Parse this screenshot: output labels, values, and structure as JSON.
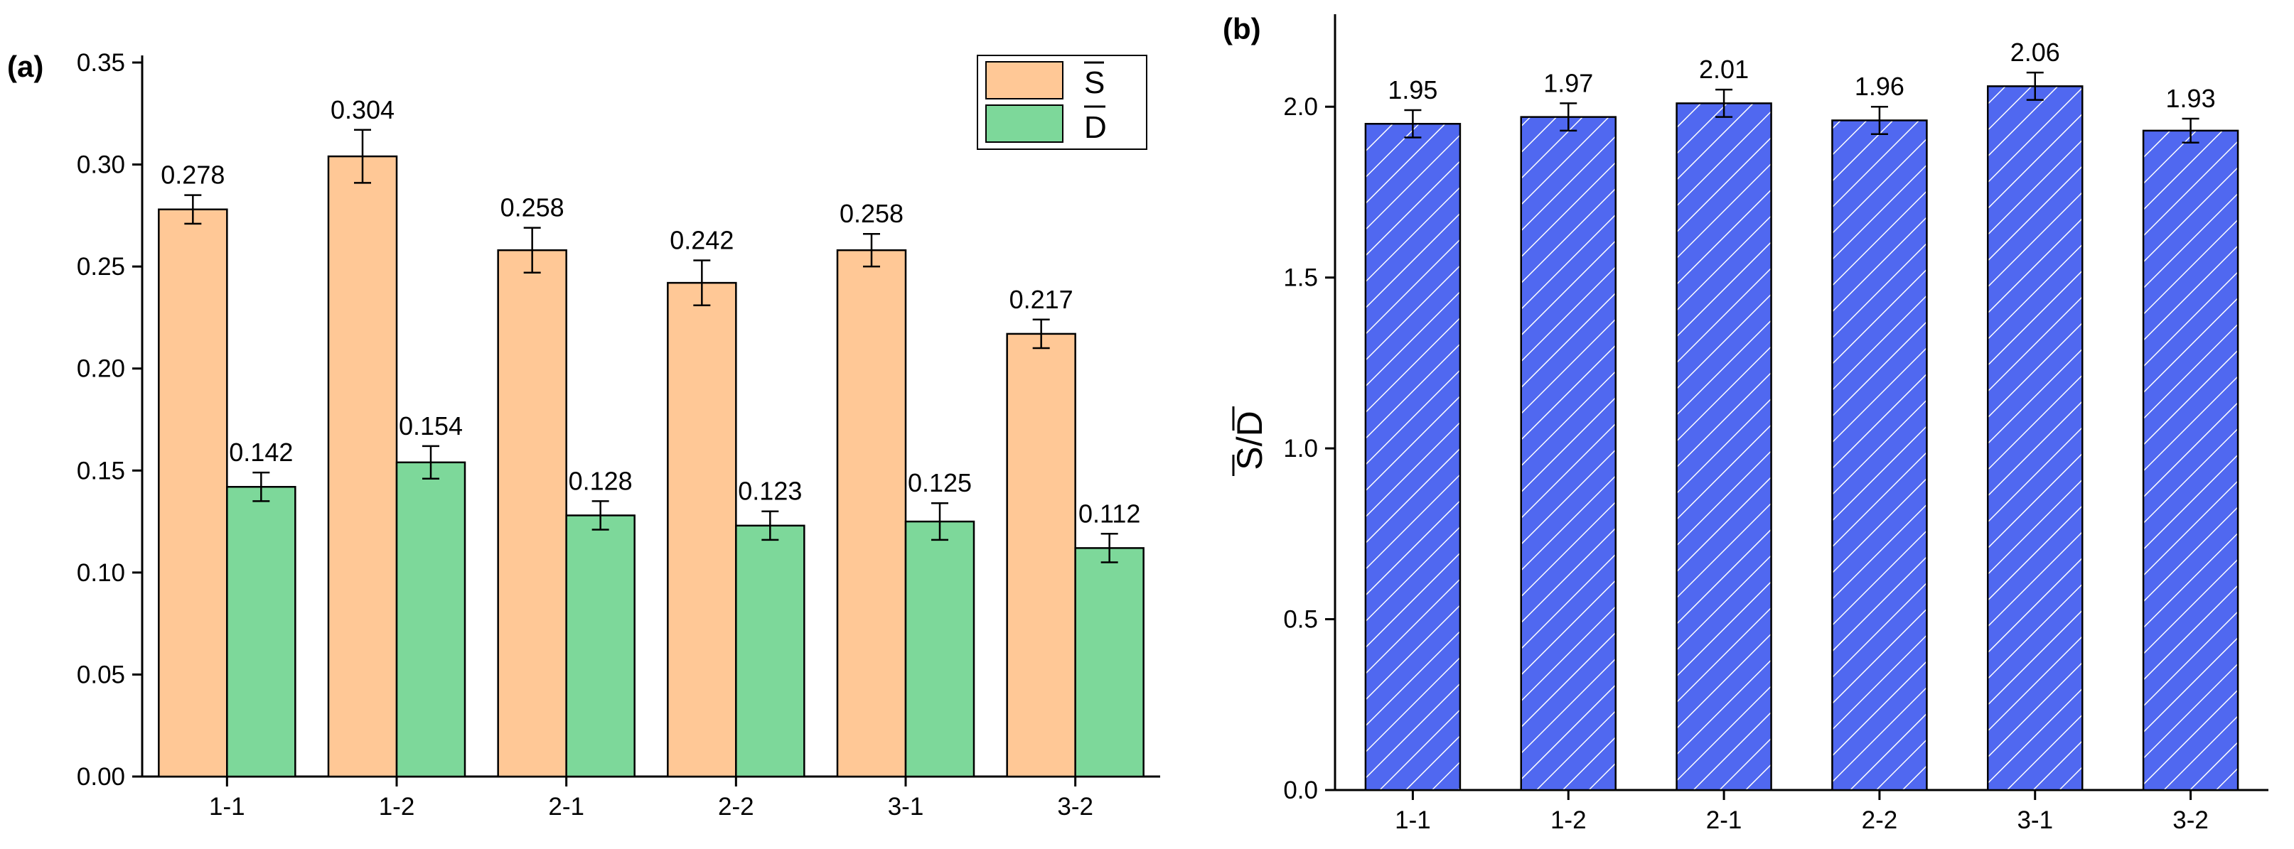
{
  "chart_data": [
    {
      "type": "bar",
      "panel": "(a)",
      "categories": [
        "1-1",
        "1-2",
        "2-1",
        "2-2",
        "3-1",
        "3-2"
      ],
      "series": [
        {
          "name": "S",
          "color": "#FFC896",
          "values": [
            0.278,
            0.304,
            0.258,
            0.242,
            0.258,
            0.217
          ],
          "errors": [
            0.007,
            0.013,
            0.011,
            0.011,
            0.008,
            0.007
          ],
          "labels": [
            "0.278",
            "0.304",
            "0.258",
            "0.242",
            "0.258",
            "0.217"
          ]
        },
        {
          "name": "D",
          "color": "#7DD89A",
          "values": [
            0.142,
            0.154,
            0.128,
            0.123,
            0.125,
            0.112
          ],
          "errors": [
            0.007,
            0.008,
            0.007,
            0.007,
            0.009,
            0.007
          ],
          "labels": [
            "0.142",
            "0.154",
            "0.128",
            "0.123",
            "0.125",
            "0.112"
          ]
        }
      ],
      "ylim": [
        0,
        0.35
      ],
      "yticks": [
        "0.00",
        "0.05",
        "0.10",
        "0.15",
        "0.20",
        "0.25",
        "0.30",
        "0.35"
      ],
      "xlabel": "",
      "ylabel": "",
      "legend_position": "top-right"
    },
    {
      "type": "bar",
      "panel": "(b)",
      "categories": [
        "1-1",
        "1-2",
        "2-1",
        "2-2",
        "3-1",
        "3-2"
      ],
      "series": [
        {
          "name": "S/D",
          "color": "#5068F0",
          "values": [
            1.95,
            1.97,
            2.01,
            1.96,
            2.06,
            1.93
          ],
          "errors": [
            0.04,
            0.04,
            0.04,
            0.04,
            0.04,
            0.035
          ],
          "labels": [
            "1.95",
            "1.97",
            "2.01",
            "1.96",
            "2.06",
            "1.93"
          ]
        }
      ],
      "ylim": [
        0,
        2.25
      ],
      "yticks": [
        "0.0",
        "0.5",
        "1.0",
        "1.5",
        "2.0"
      ],
      "xlabel": "",
      "ylabel_parts": [
        "S",
        "/",
        "D"
      ]
    }
  ]
}
